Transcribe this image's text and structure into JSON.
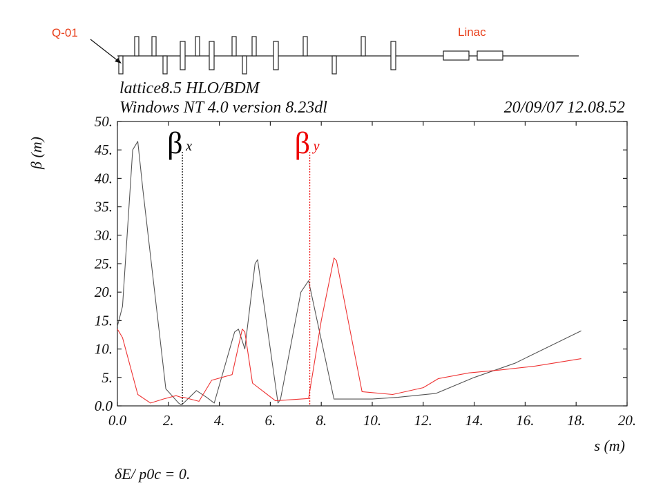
{
  "lattice": {
    "first_quad_label": "Q-01",
    "linac_label": "Linac"
  },
  "header": {
    "line1": "lattice8.5 HLO/BDM",
    "line2": "Windows NT 4.0 version 8.23dl",
    "datetime": "20/09/07  12.08.52"
  },
  "colors": {
    "beta_x": "#555555",
    "beta_y": "#ee3333",
    "marker_x": "#000000",
    "marker_y": "#ee0000",
    "annotation": "#e8401c"
  },
  "chart_data": {
    "type": "line",
    "xlabel": "s (m)",
    "ylabel": "β  (m)",
    "xlim": [
      0,
      20
    ],
    "ylim": [
      0,
      50
    ],
    "xticks": [
      0,
      2,
      4,
      6,
      8,
      10,
      12,
      14,
      16,
      18,
      20
    ],
    "xtick_labels": [
      "0.0",
      "2.",
      "4.",
      "6.",
      "8.",
      "10.",
      "12.",
      "14.",
      "16.",
      "18.",
      "20."
    ],
    "yticks": [
      0,
      5,
      10,
      15,
      20,
      25,
      30,
      35,
      40,
      45,
      50
    ],
    "ytick_labels": [
      "0.0",
      "5.",
      "10.",
      "15.",
      "20.",
      "25.",
      "30.",
      "35.",
      "40.",
      "45.",
      "50."
    ],
    "series": [
      {
        "name": "βx",
        "x": [
          0.0,
          0.2,
          0.6,
          0.8,
          1.0,
          1.9,
          2.4,
          2.5,
          2.6,
          3.1,
          3.5,
          3.8,
          4.6,
          4.75,
          5.0,
          5.4,
          5.5,
          6.3,
          6.4,
          7.2,
          7.5,
          8.5,
          10.0,
          11.0,
          12.5,
          14.0,
          15.6,
          18.2
        ],
        "y": [
          14,
          17.5,
          45,
          46.5,
          38,
          3,
          0.5,
          0.2,
          0.5,
          2.7,
          1.5,
          0.5,
          13,
          13.5,
          10,
          25,
          25.7,
          0.5,
          1.2,
          20,
          22,
          1.2,
          1.2,
          1.5,
          2.2,
          5,
          7.5,
          13.2
        ]
      },
      {
        "name": "βy",
        "x": [
          0.0,
          0.2,
          0.8,
          1.3,
          1.8,
          2.3,
          2.5,
          2.6,
          3.2,
          3.7,
          4.5,
          4.9,
          5.0,
          5.3,
          6.2,
          7.2,
          7.5,
          8.0,
          8.5,
          8.6,
          9.6,
          10.8,
          12.0,
          12.6,
          13.8,
          15.0,
          16.4,
          18.2
        ],
        "y": [
          13.5,
          12,
          2,
          0.5,
          1.2,
          1.8,
          1.5,
          1.5,
          0.8,
          4.5,
          5.5,
          13.5,
          13,
          4,
          0.9,
          1.2,
          1.3,
          15,
          26,
          25.5,
          2.5,
          2.0,
          3.2,
          4.8,
          5.8,
          6.3,
          7.0,
          8.3
        ]
      }
    ],
    "markers": [
      {
        "label": "β",
        "subscript": "x",
        "s": 2.55
      },
      {
        "label": "β",
        "subscript": "y",
        "s": 7.55
      }
    ],
    "footer": "δE/ p0c  =  0."
  }
}
